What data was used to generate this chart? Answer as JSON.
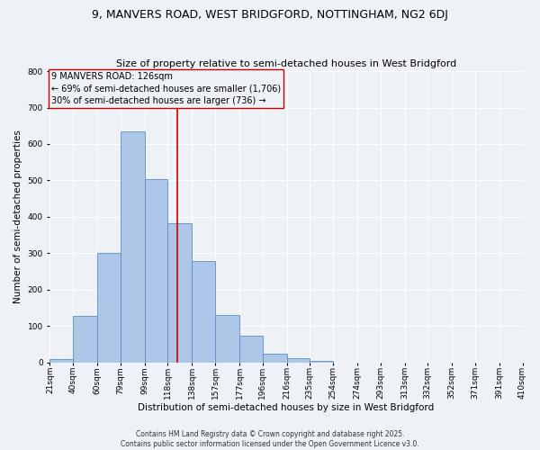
{
  "title": "9, MANVERS ROAD, WEST BRIDGFORD, NOTTINGHAM, NG2 6DJ",
  "subtitle": "Size of property relative to semi-detached houses in West Bridgford",
  "xlabel": "Distribution of semi-detached houses by size in West Bridgford",
  "ylabel": "Number of semi-detached properties",
  "bin_labels": [
    "21sqm",
    "40sqm",
    "60sqm",
    "79sqm",
    "99sqm",
    "118sqm",
    "138sqm",
    "157sqm",
    "177sqm",
    "196sqm",
    "216sqm",
    "235sqm",
    "254sqm",
    "274sqm",
    "293sqm",
    "313sqm",
    "332sqm",
    "352sqm",
    "371sqm",
    "391sqm",
    "410sqm"
  ],
  "bar_values": [
    10,
    128,
    300,
    635,
    503,
    383,
    278,
    131,
    73,
    25,
    12,
    5,
    0,
    0,
    0,
    0,
    0,
    0,
    0,
    0
  ],
  "bin_edges": [
    21,
    40,
    60,
    79,
    99,
    118,
    138,
    157,
    177,
    196,
    216,
    235,
    254,
    274,
    293,
    313,
    332,
    352,
    371,
    391,
    410
  ],
  "property_value": 126,
  "bar_color": "#aec6e8",
  "bar_edge_color": "#5b8fc9",
  "vline_color": "#cc0000",
  "annotation_line1": "9 MANVERS ROAD: 126sqm",
  "annotation_line2": "← 69% of semi-detached houses are smaller (1,706)",
  "annotation_line3": "30% of semi-detached houses are larger (736) →",
  "box_edge_color": "#cc0000",
  "background_color": "#eef2f7",
  "grid_color": "#ffffff",
  "ylim": [
    0,
    800
  ],
  "yticks": [
    0,
    100,
    200,
    300,
    400,
    500,
    600,
    700,
    800
  ],
  "footer": "Contains HM Land Registry data © Crown copyright and database right 2025.\nContains public sector information licensed under the Open Government Licence v3.0.",
  "title_fontsize": 9,
  "subtitle_fontsize": 8,
  "label_fontsize": 7.5,
  "tick_fontsize": 6.5,
  "annot_fontsize": 7,
  "footer_fontsize": 5.5
}
